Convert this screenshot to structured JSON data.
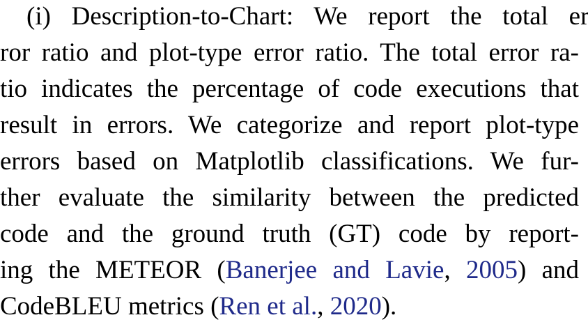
{
  "paragraph": {
    "lines": [
      "(i) Description-to-Chart: We report the total er-",
      "ror ratio and plot-type error ratio. The total error ra-",
      "tio indicates the percentage of code executions that",
      "result in errors. We categorize and report plot-type",
      "errors based on Matplotlib classifications. We fur-",
      "ther evaluate the similarity between the predicted",
      "code and the ground truth (GT) code by report-"
    ],
    "line8": {
      "pre": "ing the METEOR (",
      "cite_authors": "Banerjee and Lavie",
      "sep": ", ",
      "cite_year": "2005",
      "post": ") and"
    },
    "line9": {
      "pre": "CodeBLEU metrics (",
      "cite_authors": "Ren et al.",
      "sep": ", ",
      "cite_year": "2020",
      "post": ")."
    }
  },
  "colors": {
    "text": "#000000",
    "citation": "#1f2a8a"
  }
}
